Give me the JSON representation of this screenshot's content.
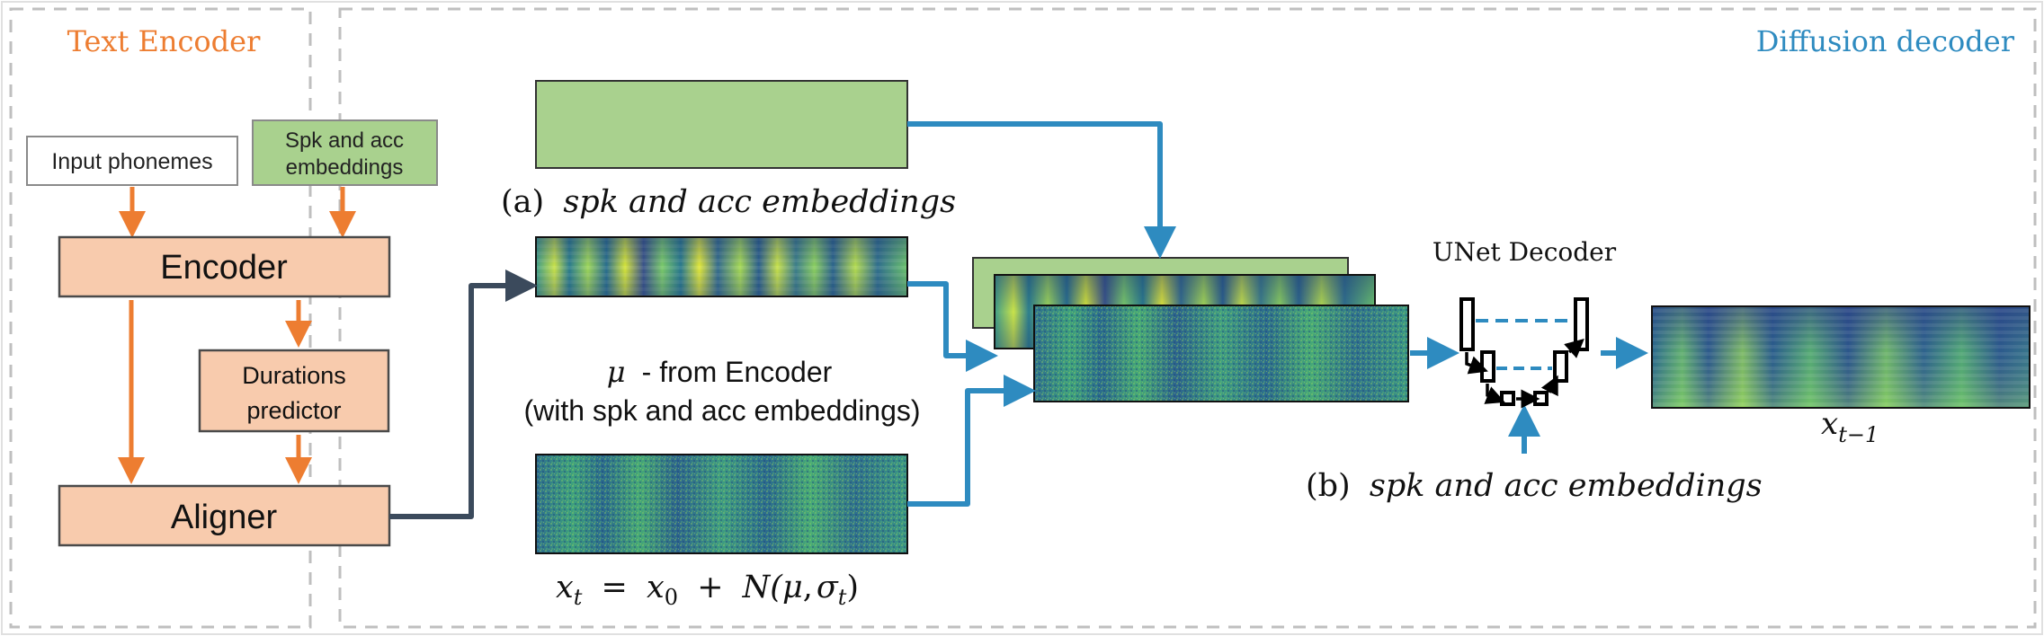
{
  "text_encoder": {
    "title": "Text Encoder",
    "input_phonemes": "Input phonemes",
    "spk_acc_line1": "Spk and acc",
    "spk_acc_line2": "embeddings",
    "encoder": "Encoder",
    "durations_line1": "Durations",
    "durations_line2": "predictor",
    "aligner": "Aligner"
  },
  "diffusion_decoder": {
    "title": "Diffusion decoder",
    "label_a_prefix": "(a)",
    "label_a_text": "spk and acc embeddings",
    "mu_line1_symbol": "μ",
    "mu_line1_text": "- from Encoder",
    "mu_line2": "(with spk and acc embeddings)",
    "xt_var": "x",
    "xt_sub": "t",
    "xt_eq": "=",
    "x0_var": "x",
    "x0_sub": "0",
    "plus": "+",
    "normal_open": "N(",
    "normal_mu": "μ",
    "normal_comma": ",",
    "normal_sigma": "σ",
    "normal_sub": "t",
    "normal_close": ")",
    "unet_title": "UNet Decoder",
    "label_b_prefix": "(b)",
    "label_b_text": "spk and acc embeddings",
    "output_var": "x",
    "output_sub": "t−1"
  },
  "colors": {
    "orange": "#ED7D31",
    "orange_fill": "#F8CBAD",
    "green_fill": "#A9D18E",
    "blue": "#2E8BC0",
    "navy": "#3B4A5C",
    "dashed_border": "#BFBFBF"
  }
}
